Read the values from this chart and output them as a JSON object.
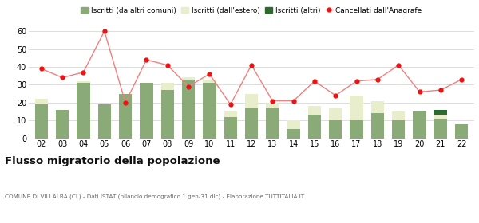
{
  "years": [
    "02",
    "03",
    "04",
    "05",
    "06",
    "07",
    "08",
    "09",
    "10",
    "11",
    "12",
    "13",
    "14",
    "15",
    "16",
    "17",
    "18",
    "19",
    "20",
    "21",
    "22"
  ],
  "iscritti_comuni": [
    19,
    16,
    31,
    19,
    25,
    31,
    27,
    33,
    31,
    12,
    17,
    17,
    5,
    13,
    10,
    10,
    14,
    10,
    15,
    11,
    8
  ],
  "iscritti_estero": [
    3,
    0,
    1,
    0,
    0,
    0,
    4,
    1,
    2,
    3,
    8,
    3,
    5,
    5,
    7,
    14,
    7,
    5,
    0,
    2,
    0
  ],
  "iscritti_altri": [
    0,
    0,
    0,
    0,
    0,
    0,
    0,
    0,
    0,
    0,
    0,
    0,
    0,
    0,
    0,
    0,
    0,
    0,
    0,
    3,
    0
  ],
  "cancellati": [
    39,
    34,
    37,
    60,
    20,
    44,
    41,
    29,
    36,
    19,
    41,
    21,
    21,
    32,
    24,
    32,
    33,
    41,
    26,
    27,
    33
  ],
  "color_comuni": "#8aab78",
  "color_estero": "#e8eecc",
  "color_altri": "#2d6a2d",
  "color_cancellati": "#ee1111",
  "color_line": "#f08080",
  "ylim": [
    0,
    65
  ],
  "yticks": [
    0,
    10,
    20,
    30,
    40,
    50,
    60
  ],
  "title": "Flusso migratorio della popolazione",
  "subtitle": "COMUNE DI VILLALBA (CL) - Dati ISTAT (bilancio demografico 1 gen-31 dic) - Elaborazione TUTTITALIA.IT",
  "bg_color": "#ffffff",
  "grid_color": "#d8d8d8",
  "legend_label_comuni": "Iscritti (da altri comuni)",
  "legend_label_estero": "Iscritti (dall'estero)",
  "legend_label_altri": "Iscritti (altri)",
  "legend_label_cancellati": "Cancellati dall'Anagrafe"
}
